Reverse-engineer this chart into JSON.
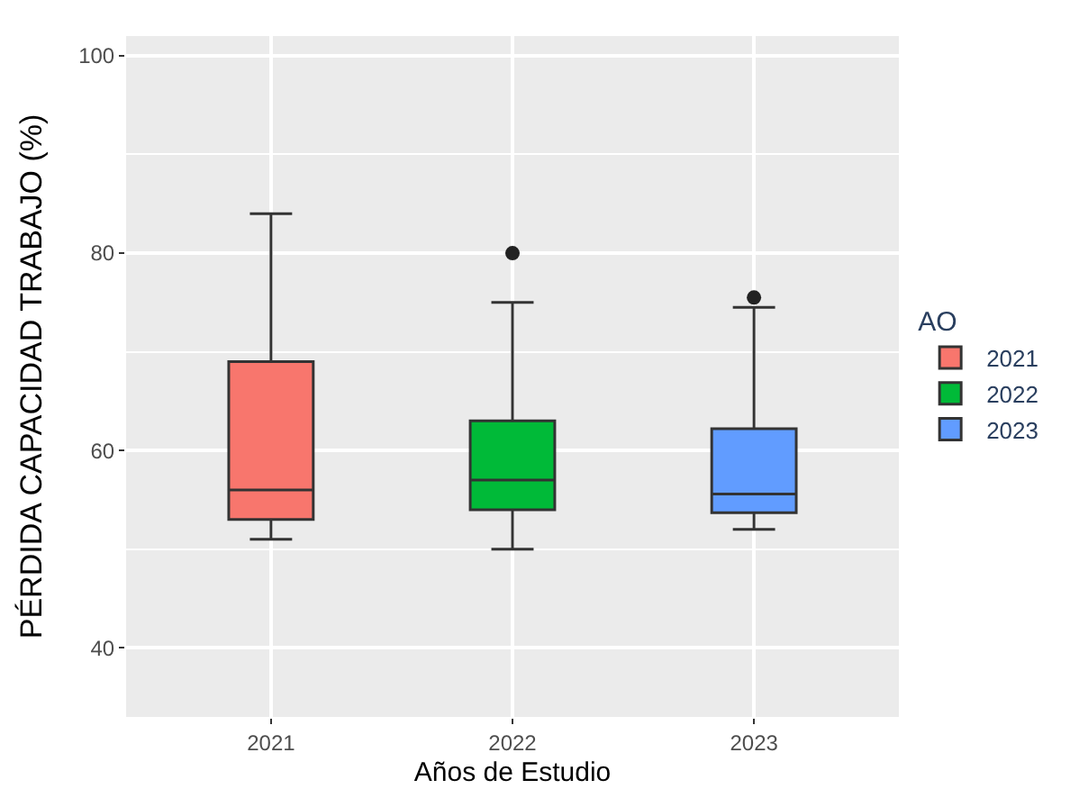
{
  "chart_data": {
    "type": "box",
    "xlabel": "Años de Estudio",
    "ylabel": "PÉRDIDA CAPACIDAD TRABAJO (%)",
    "legend_title": "AO",
    "categories": [
      "2021",
      "2022",
      "2023"
    ],
    "series": [
      {
        "name": "2021",
        "color": "#f8766d",
        "boxes": [
          {
            "low": 51,
            "q1": 53,
            "median": 56,
            "q3": 69,
            "high": 84
          },
          null,
          null
        ]
      },
      {
        "name": "2022",
        "color": "#00ba38",
        "boxes": [
          null,
          {
            "low": 50,
            "q1": 54,
            "median": 57,
            "q3": 63,
            "high": 75,
            "outliers": [
              80
            ]
          },
          null
        ]
      },
      {
        "name": "2023",
        "color": "#619cff",
        "boxes": [
          null,
          null,
          {
            "low": 52,
            "q1": 53.7,
            "median": 55.6,
            "q3": 62.2,
            "high": 74.5,
            "outliers": [
              75.5
            ]
          }
        ]
      }
    ],
    "ylim": [
      33,
      102
    ],
    "yticks": [
      40,
      60,
      80,
      100
    ],
    "grid": true,
    "legend": "right"
  }
}
